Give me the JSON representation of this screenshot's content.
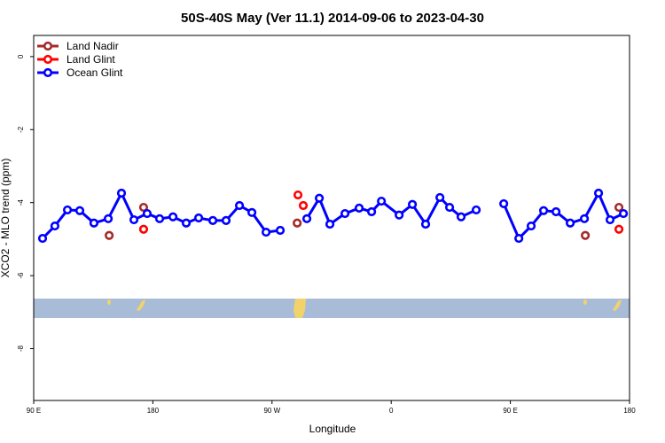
{
  "chart_data": {
    "type": "line",
    "title": "50S-40S May (Ver 11.1)   2014-09-06 to 2023-04-30",
    "x_label": "Longitude",
    "y_label": "XCO2 - MLO trend (ppm)",
    "xlim": [
      90,
      540
    ],
    "xticks": [
      {
        "value": 90,
        "label": "90 E"
      },
      {
        "value": 180,
        "label": "180"
      },
      {
        "value": 270,
        "label": "90 W"
      },
      {
        "value": 360,
        "label": "0"
      },
      {
        "value": 450,
        "label": "90 E"
      },
      {
        "value": 540,
        "label": "180"
      }
    ],
    "ylim": [
      -9.42,
      0.58
    ],
    "yticks": [
      0,
      -2,
      -4,
      -6,
      -8
    ],
    "legend": "top-left",
    "series": [
      {
        "name": "Land Nadir",
        "color": "#a52a2a",
        "line": false,
        "x": [
          147,
          173,
          289,
          506.6,
          532
        ],
        "values": [
          -4.9,
          -4.13,
          -4.56,
          -4.9,
          -4.13
        ]
      },
      {
        "name": "Land Glint",
        "color": "#ff0000",
        "line": false,
        "x": [
          173,
          289.6,
          293.6,
          532
        ],
        "values": [
          -4.73,
          -3.79,
          -4.08,
          -4.73
        ]
      },
      {
        "name": "Ocean Glint",
        "color": "#0000ff",
        "line": true,
        "x": [
          96.7,
          106,
          115.5,
          124.8,
          135.5,
          146.3,
          156.3,
          165.7,
          175.7,
          185.1,
          195.2,
          205.2,
          214.6,
          225.3,
          235.3,
          245.4,
          254.8,
          265.5,
          276.2,
          286,
          296.3,
          305.7,
          313.7,
          325.1,
          335.8,
          345.2,
          352.6,
          366,
          376,
          386,
          396.8,
          404.1,
          412.8,
          424.2,
          435,
          445,
          456.4,
          465.7,
          475.1,
          484.5,
          495.2,
          505.9,
          516.6,
          525.3,
          535.4
        ],
        "values": [
          -4.98,
          -4.64,
          -4.2,
          -4.22,
          -4.56,
          -4.44,
          -3.74,
          -4.47,
          -4.3,
          -4.44,
          -4.39,
          -4.56,
          -4.42,
          -4.49,
          -4.49,
          -4.08,
          -4.27,
          -4.81,
          -4.76,
          null,
          -4.44,
          -3.88,
          -4.59,
          -4.3,
          -4.15,
          -4.25,
          -3.96,
          -4.34,
          -4.05,
          -4.59,
          -3.86,
          -4.13,
          -4.39,
          -4.2,
          null,
          -4.03,
          -4.98,
          -4.64,
          -4.22,
          -4.25,
          -4.56,
          -4.44,
          -3.74,
          -4.47,
          -4.3
        ]
      }
    ]
  }
}
